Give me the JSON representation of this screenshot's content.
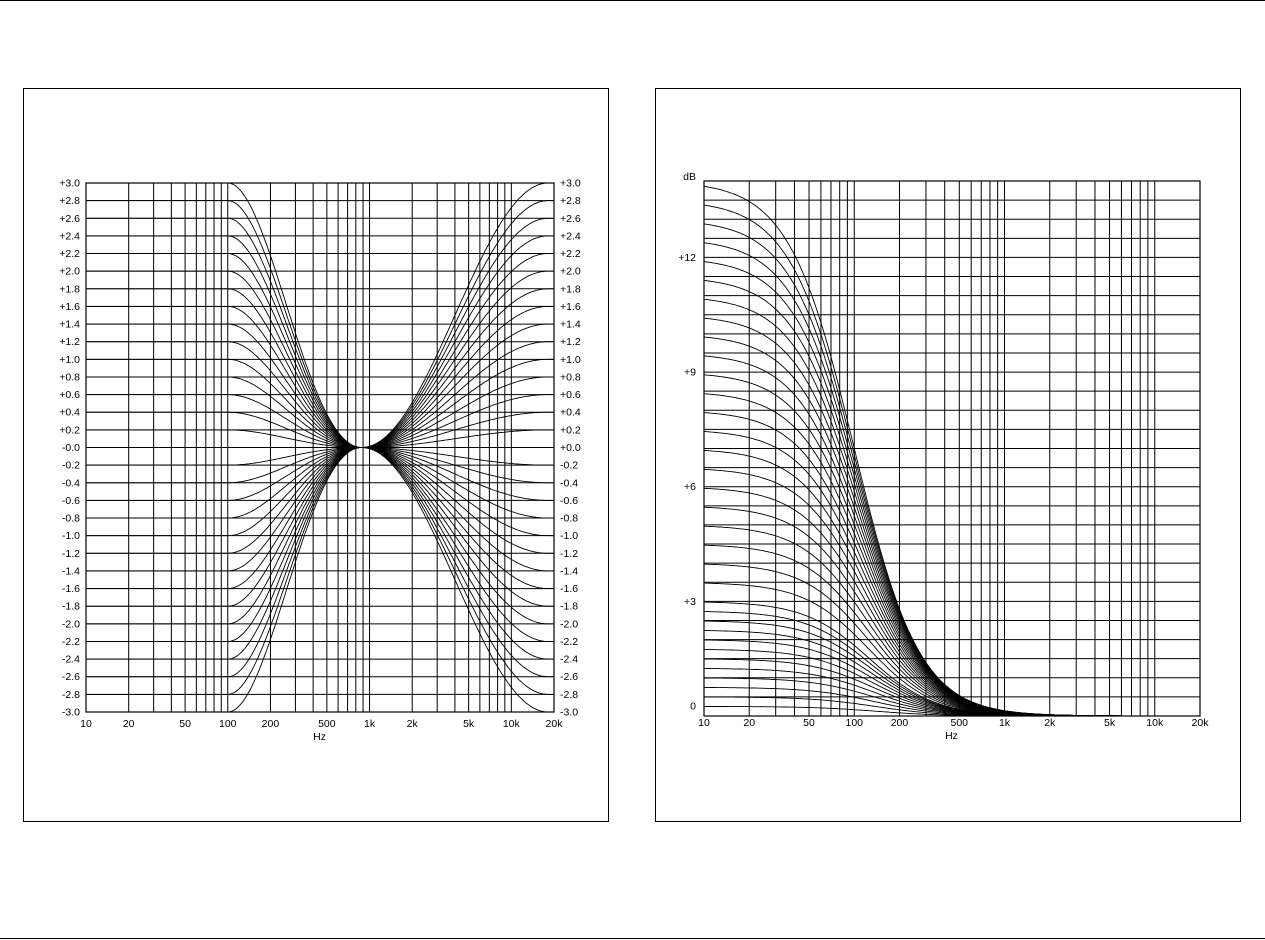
{
  "chart_data": [
    {
      "type": "line",
      "id": "tilt-eq",
      "xlabel": "Hz",
      "ylabel": "",
      "x_scale": "log",
      "xlim": [
        10,
        20000
      ],
      "ylim": [
        -3.0,
        3.0
      ],
      "x_ticks": [
        {
          "v": 10,
          "label": "10"
        },
        {
          "v": 20,
          "label": "20"
        },
        {
          "v": 50,
          "label": "50"
        },
        {
          "v": 100,
          "label": "100"
        },
        {
          "v": 200,
          "label": "200"
        },
        {
          "v": 500,
          "label": "500"
        },
        {
          "v": 1000,
          "label": "1k"
        },
        {
          "v": 2000,
          "label": "2k"
        },
        {
          "v": 5000,
          "label": "5k"
        },
        {
          "v": 10000,
          "label": "10k"
        },
        {
          "v": 20000,
          "label": "20k"
        }
      ],
      "y_ticks_left": [
        "+3.0",
        "+2.8",
        "+2.6",
        "+2.4",
        "+2.2",
        "+2.0",
        "+1.8",
        "+1.6",
        "+1.4",
        "+1.2",
        "+1.0",
        "+0.8",
        "+0.6",
        "+0.4",
        "+0.2",
        "-0.0",
        "-0.2",
        "-0.4",
        "-0.6",
        "-0.8",
        "-1.0",
        "-1.2",
        "-1.4",
        "-1.6",
        "-1.8",
        "-2.0",
        "-2.2",
        "-2.4",
        "-2.6",
        "-2.8",
        "-3.0"
      ],
      "y_ticks_right": [
        "+3.0",
        "+2.8",
        "+2.6",
        "+2.4",
        "+2.2",
        "+2.0",
        "+1.8",
        "+1.6",
        "+1.4",
        "+1.2",
        "+1.0",
        "+0.8",
        "+0.6",
        "+0.4",
        "+0.2",
        "+0.0",
        "-0.2",
        "-0.4",
        "-0.6",
        "-0.8",
        "-1.0",
        "-1.2",
        "-1.4",
        "-1.6",
        "-1.8",
        "-2.0",
        "-2.2",
        "-2.4",
        "-2.6",
        "-2.8",
        "-3.0"
      ],
      "pivot_hz": 880,
      "low_corner_hz": 100,
      "high_corner_hz": 7000,
      "low_shelf_gains_db": [
        3.0,
        2.8,
        2.6,
        2.4,
        2.2,
        2.0,
        1.8,
        1.6,
        1.4,
        1.2,
        1.0,
        0.8,
        0.6,
        0.4,
        0.2,
        0.0,
        -0.2,
        -0.4,
        -0.6,
        -0.8,
        -1.0,
        -1.2,
        -1.4,
        -1.6,
        -1.8,
        -2.0,
        -2.2,
        -2.4,
        -2.6,
        -2.8,
        -3.0
      ],
      "high_shelf_gains_db": [
        3.0,
        2.8,
        2.6,
        2.4,
        2.2,
        2.0,
        1.8,
        1.6,
        1.4,
        1.2,
        1.0,
        0.8,
        0.6,
        0.4,
        0.2,
        0.0,
        -0.2,
        -0.4,
        -0.6,
        -0.8,
        -1.0,
        -1.2,
        -1.4,
        -1.6,
        -1.8,
        -2.0,
        -2.2,
        -2.4,
        -2.6,
        -2.8,
        -3.0
      ],
      "grid": true
    },
    {
      "type": "line",
      "id": "low-shelf-boost",
      "xlabel": "Hz",
      "ylabel": "dB",
      "x_scale": "log",
      "xlim": [
        10,
        20000
      ],
      "ylim": [
        0,
        14
      ],
      "x_ticks": [
        {
          "v": 10,
          "label": "10"
        },
        {
          "v": 20,
          "label": "20"
        },
        {
          "v": 50,
          "label": "50"
        },
        {
          "v": 100,
          "label": "100"
        },
        {
          "v": 200,
          "label": "200"
        },
        {
          "v": 500,
          "label": "500"
        },
        {
          "v": 1000,
          "label": "1k"
        },
        {
          "v": 2000,
          "label": "2k"
        },
        {
          "v": 5000,
          "label": "5k"
        },
        {
          "v": 10000,
          "label": "10k"
        },
        {
          "v": 20000,
          "label": "20k"
        }
      ],
      "y_ticks": [
        {
          "v": 0,
          "label": "0"
        },
        {
          "v": 3,
          "label": "+3"
        },
        {
          "v": 6,
          "label": "+6"
        },
        {
          "v": 9,
          "label": "+9"
        },
        {
          "v": 12,
          "label": "+12"
        }
      ],
      "gains_db": [
        14.0,
        13.5,
        13.0,
        12.5,
        12.0,
        11.5,
        11.0,
        10.5,
        10.0,
        9.5,
        9.0,
        8.5,
        8.0,
        7.5,
        7.0,
        6.5,
        6.0,
        5.5,
        5.0,
        4.5,
        4.0,
        3.5,
        3.0,
        2.75,
        2.5,
        2.25,
        2.0,
        1.75,
        1.5,
        1.25,
        1.0,
        0.75,
        0.5,
        0.25
      ],
      "corner_hz": 100,
      "grid": true
    }
  ]
}
